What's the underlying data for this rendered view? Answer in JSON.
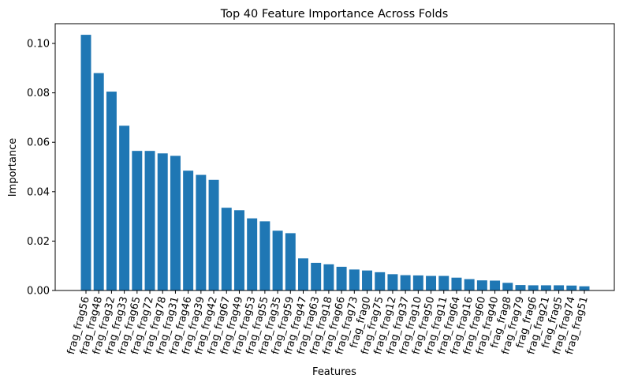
{
  "chart_data": {
    "type": "bar",
    "title": "Top 40 Feature Importance Across Folds",
    "xlabel": "Features",
    "ylabel": "Importance",
    "ylim": [
      0,
      0.108
    ],
    "yticks": [
      "0.00",
      "0.02",
      "0.04",
      "0.06",
      "0.08",
      "0.10"
    ],
    "grid": false,
    "bar_color": "#1f77b4",
    "categories": [
      "frag_frag56",
      "frag_frag48",
      "frag_frag32",
      "frag_frag33",
      "frag_frag65",
      "frag_frag72",
      "frag_frag78",
      "frag_frag31",
      "frag_frag46",
      "frag_frag39",
      "frag_frag42",
      "frag_frag67",
      "frag_frag49",
      "frag_frag53",
      "frag_frag55",
      "frag_frag35",
      "frag_frag59",
      "frag_frag47",
      "frag_frag63",
      "frag_frag18",
      "frag_frag66",
      "frag_frag73",
      "frag_frag0",
      "frag_frag75",
      "frag_frag12",
      "frag_frag37",
      "frag_frag10",
      "frag_frag50",
      "frag_frag11",
      "frag_frag64",
      "frag_frag16",
      "frag_frag60",
      "frag_frag40",
      "frag_frag8",
      "frag_frag79",
      "frag_frag6",
      "frag_frag21",
      "frag_frag5",
      "frag_frag74",
      "frag_frag51"
    ],
    "values": [
      0.1035,
      0.088,
      0.0805,
      0.0667,
      0.0565,
      0.0565,
      0.0555,
      0.0545,
      0.0485,
      0.0468,
      0.0448,
      0.0335,
      0.0325,
      0.0292,
      0.028,
      0.0242,
      0.0232,
      0.013,
      0.0112,
      0.0106,
      0.0096,
      0.0085,
      0.0081,
      0.0074,
      0.0066,
      0.0062,
      0.0061,
      0.0059,
      0.0059,
      0.0052,
      0.0046,
      0.0041,
      0.004,
      0.0031,
      0.0022,
      0.0021,
      0.0021,
      0.0021,
      0.002,
      0.0017
    ]
  }
}
